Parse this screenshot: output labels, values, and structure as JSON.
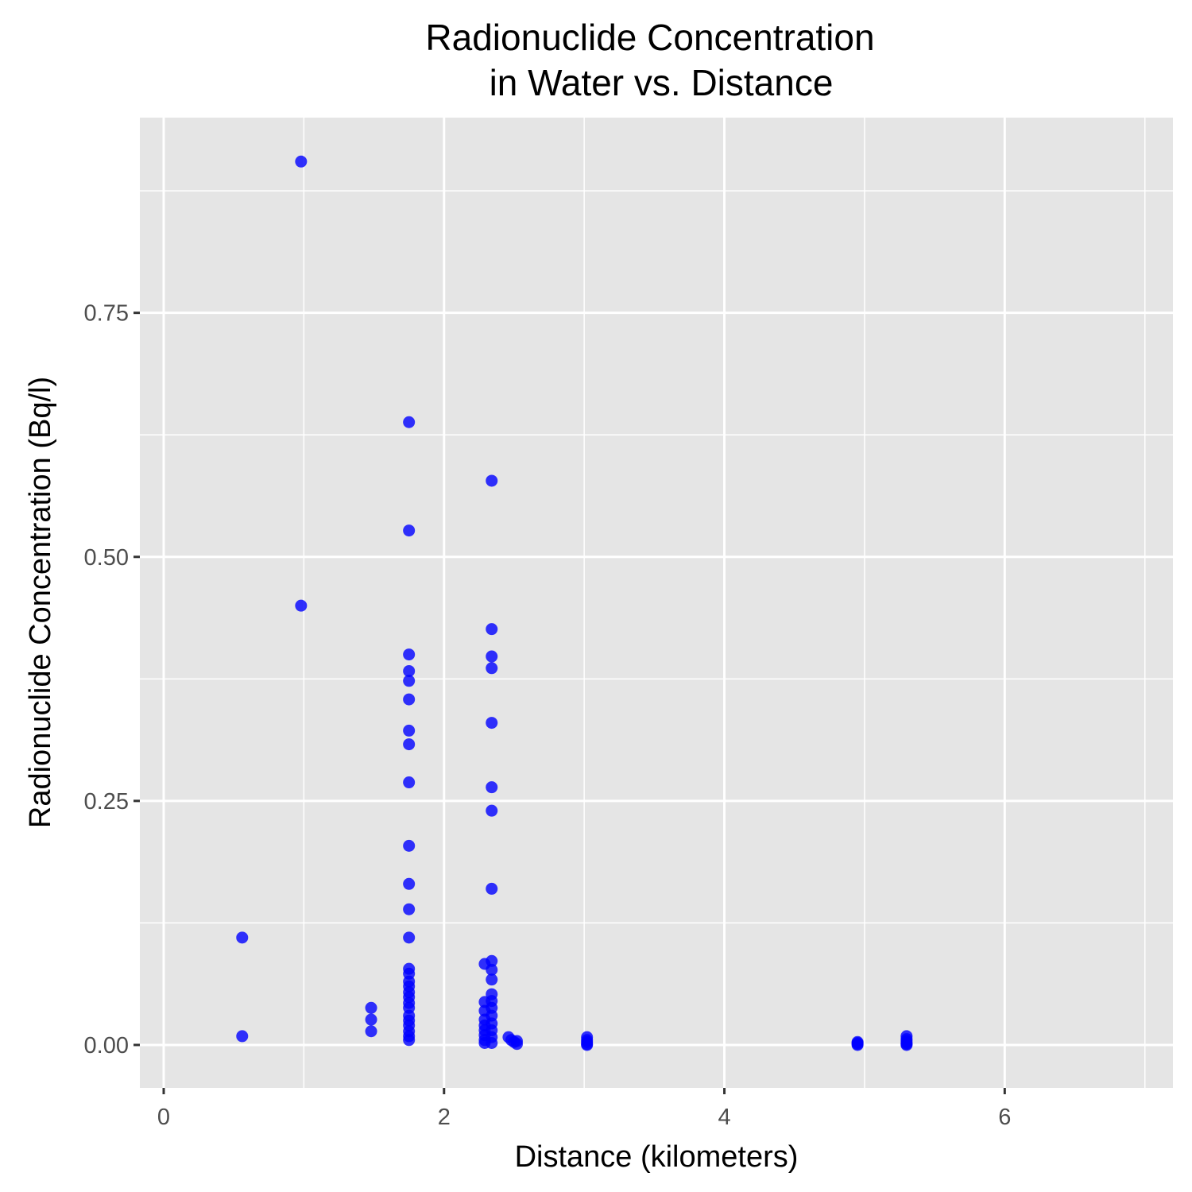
{
  "chart_data": {
    "type": "scatter",
    "title": [
      "Radionuclide Concentration",
      "in Water vs. Distance"
    ],
    "xlabel": "Distance (kilometers)",
    "ylabel": "Radionuclide Concentration (Bq/l)",
    "xlim": [
      -0.17,
      7.2
    ],
    "ylim": [
      -0.044,
      0.95
    ],
    "x_ticks": [
      {
        "value": 0,
        "label": "0"
      },
      {
        "value": 2,
        "label": "2"
      },
      {
        "value": 4,
        "label": "4"
      },
      {
        "value": 6,
        "label": "6"
      }
    ],
    "y_ticks": [
      {
        "value": 0.0,
        "label": "0.00"
      },
      {
        "value": 0.25,
        "label": "0.25"
      },
      {
        "value": 0.5,
        "label": "0.50"
      },
      {
        "value": 0.75,
        "label": "0.75"
      }
    ],
    "x_minor": [
      1,
      3,
      5,
      7
    ],
    "y_minor": [
      0.125,
      0.375,
      0.625,
      0.875
    ],
    "grid": true,
    "colors": {
      "panel": "#e5e5e5",
      "grid": "#ffffff",
      "point": "#0000ff"
    },
    "points": [
      {
        "x": 0.56,
        "y": 0.11
      },
      {
        "x": 0.56,
        "y": 0.009
      },
      {
        "x": 0.98,
        "y": 0.905
      },
      {
        "x": 0.98,
        "y": 0.45
      },
      {
        "x": 1.48,
        "y": 0.038
      },
      {
        "x": 1.48,
        "y": 0.026
      },
      {
        "x": 1.48,
        "y": 0.014
      },
      {
        "x": 1.75,
        "y": 0.638
      },
      {
        "x": 1.75,
        "y": 0.527
      },
      {
        "x": 1.75,
        "y": 0.4
      },
      {
        "x": 1.75,
        "y": 0.383
      },
      {
        "x": 1.75,
        "y": 0.373
      },
      {
        "x": 1.75,
        "y": 0.354
      },
      {
        "x": 1.75,
        "y": 0.322
      },
      {
        "x": 1.75,
        "y": 0.308
      },
      {
        "x": 1.75,
        "y": 0.269
      },
      {
        "x": 1.75,
        "y": 0.204
      },
      {
        "x": 1.75,
        "y": 0.165
      },
      {
        "x": 1.75,
        "y": 0.139
      },
      {
        "x": 1.75,
        "y": 0.11
      },
      {
        "x": 1.75,
        "y": 0.078
      },
      {
        "x": 1.75,
        "y": 0.073
      },
      {
        "x": 1.75,
        "y": 0.065
      },
      {
        "x": 1.75,
        "y": 0.06
      },
      {
        "x": 1.75,
        "y": 0.054
      },
      {
        "x": 1.75,
        "y": 0.049
      },
      {
        "x": 1.75,
        "y": 0.043
      },
      {
        "x": 1.75,
        "y": 0.038
      },
      {
        "x": 1.75,
        "y": 0.03
      },
      {
        "x": 1.75,
        "y": 0.025
      },
      {
        "x": 1.75,
        "y": 0.02
      },
      {
        "x": 1.75,
        "y": 0.014
      },
      {
        "x": 1.75,
        "y": 0.009
      },
      {
        "x": 1.75,
        "y": 0.005
      },
      {
        "x": 2.29,
        "y": 0.083
      },
      {
        "x": 2.29,
        "y": 0.044
      },
      {
        "x": 2.29,
        "y": 0.035
      },
      {
        "x": 2.29,
        "y": 0.026
      },
      {
        "x": 2.29,
        "y": 0.02
      },
      {
        "x": 2.29,
        "y": 0.015
      },
      {
        "x": 2.29,
        "y": 0.01
      },
      {
        "x": 2.29,
        "y": 0.005
      },
      {
        "x": 2.29,
        "y": 0.002
      },
      {
        "x": 2.34,
        "y": 0.578
      },
      {
        "x": 2.34,
        "y": 0.426
      },
      {
        "x": 2.34,
        "y": 0.398
      },
      {
        "x": 2.34,
        "y": 0.386
      },
      {
        "x": 2.34,
        "y": 0.33
      },
      {
        "x": 2.34,
        "y": 0.264
      },
      {
        "x": 2.34,
        "y": 0.24
      },
      {
        "x": 2.34,
        "y": 0.16
      },
      {
        "x": 2.34,
        "y": 0.086
      },
      {
        "x": 2.34,
        "y": 0.077
      },
      {
        "x": 2.34,
        "y": 0.067
      },
      {
        "x": 2.34,
        "y": 0.052
      },
      {
        "x": 2.34,
        "y": 0.045
      },
      {
        "x": 2.34,
        "y": 0.038
      },
      {
        "x": 2.34,
        "y": 0.03
      },
      {
        "x": 2.34,
        "y": 0.022
      },
      {
        "x": 2.34,
        "y": 0.015
      },
      {
        "x": 2.34,
        "y": 0.008
      },
      {
        "x": 2.34,
        "y": 0.002
      },
      {
        "x": 2.46,
        "y": 0.008
      },
      {
        "x": 2.48,
        "y": 0.005
      },
      {
        "x": 2.5,
        "y": 0.003
      },
      {
        "x": 2.52,
        "y": 0.001
      },
      {
        "x": 2.52,
        "y": 0.004
      },
      {
        "x": 3.02,
        "y": 0.008
      },
      {
        "x": 3.02,
        "y": 0.005
      },
      {
        "x": 3.02,
        "y": 0.003
      },
      {
        "x": 3.02,
        "y": 0.001
      },
      {
        "x": 3.02,
        "y": 0.0
      },
      {
        "x": 4.95,
        "y": 0.003
      },
      {
        "x": 4.95,
        "y": 0.002
      },
      {
        "x": 4.95,
        "y": 0.001
      },
      {
        "x": 4.95,
        "y": 0.0
      },
      {
        "x": 5.3,
        "y": 0.009
      },
      {
        "x": 5.3,
        "y": 0.006
      },
      {
        "x": 5.3,
        "y": 0.004
      },
      {
        "x": 5.3,
        "y": 0.002
      },
      {
        "x": 5.3,
        "y": 0.001
      },
      {
        "x": 5.3,
        "y": 0.0
      }
    ]
  }
}
